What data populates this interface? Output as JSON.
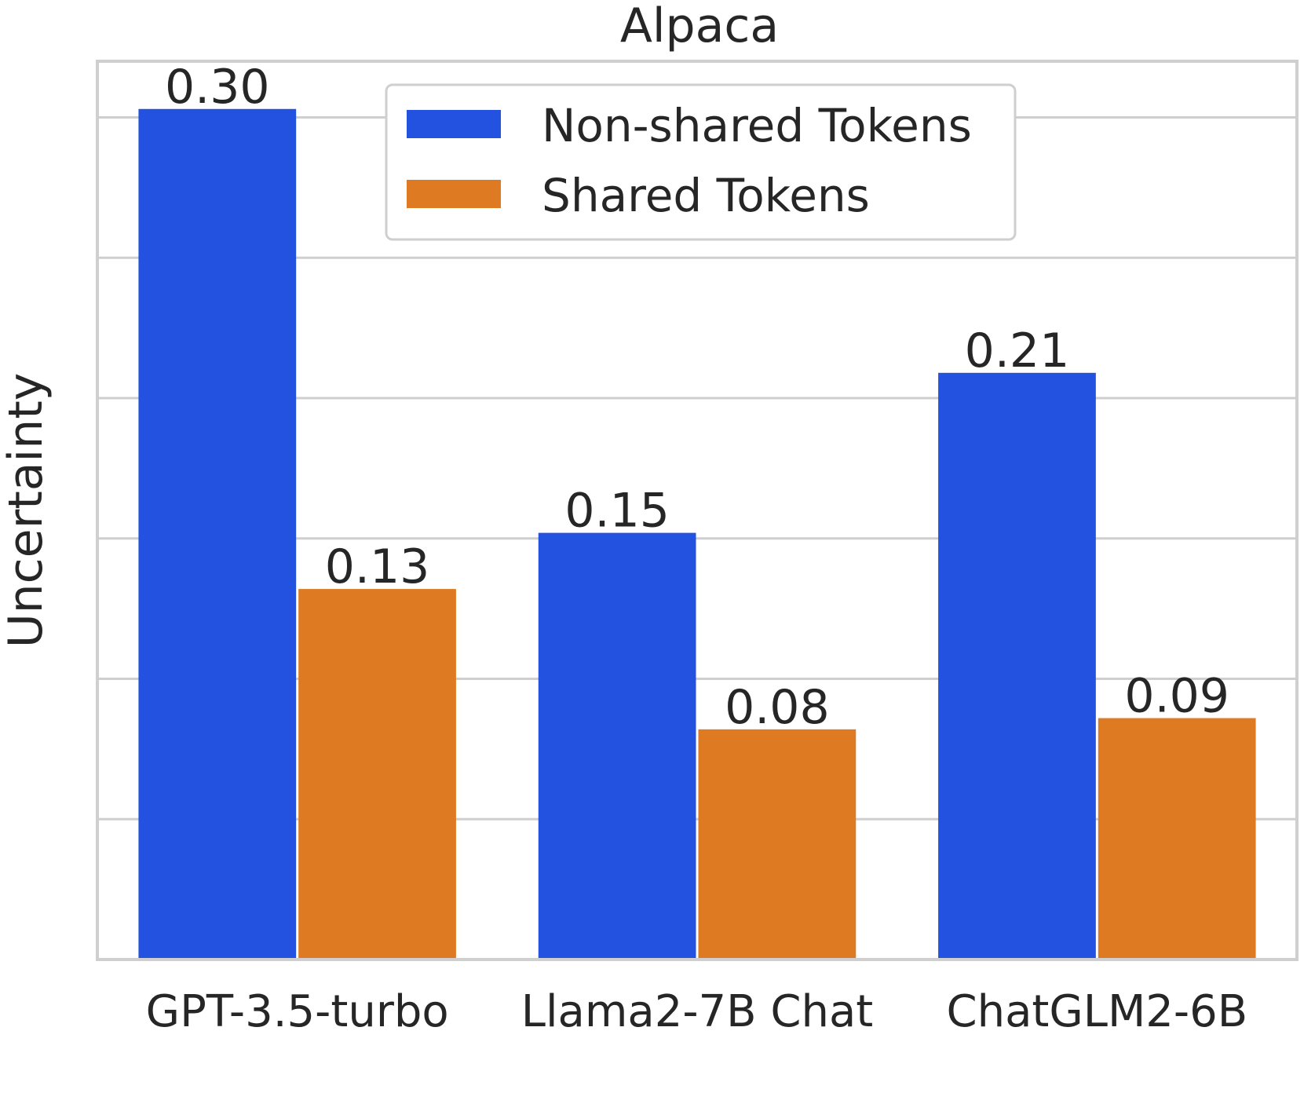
{
  "chart_data": {
    "type": "bar",
    "title": "Alpaca",
    "xlabel": "",
    "ylabel": "Uncertainty",
    "categories": [
      "GPT-3.5-turbo",
      "Llama2-7B Chat",
      "ChatGLM2-6B"
    ],
    "series": [
      {
        "name": "Non-shared Tokens",
        "color": "#2351e0",
        "values": [
          0.303,
          0.152,
          0.209
        ],
        "labels": [
          "0.30",
          "0.15",
          "0.21"
        ]
      },
      {
        "name": "Shared Tokens",
        "color": "#de7b22",
        "values": [
          0.132,
          0.082,
          0.086
        ],
        "labels": [
          "0.13",
          "0.08",
          "0.09"
        ]
      }
    ],
    "ylim": [
      0,
      0.32
    ],
    "yticks": [
      0.05,
      0.1,
      0.15,
      0.2,
      0.25,
      0.3
    ],
    "grid": true,
    "legend_position": "top-center",
    "colors": {
      "grid": "#cfcfcf",
      "frame": "#cfcfcf",
      "text": "#262626"
    }
  }
}
